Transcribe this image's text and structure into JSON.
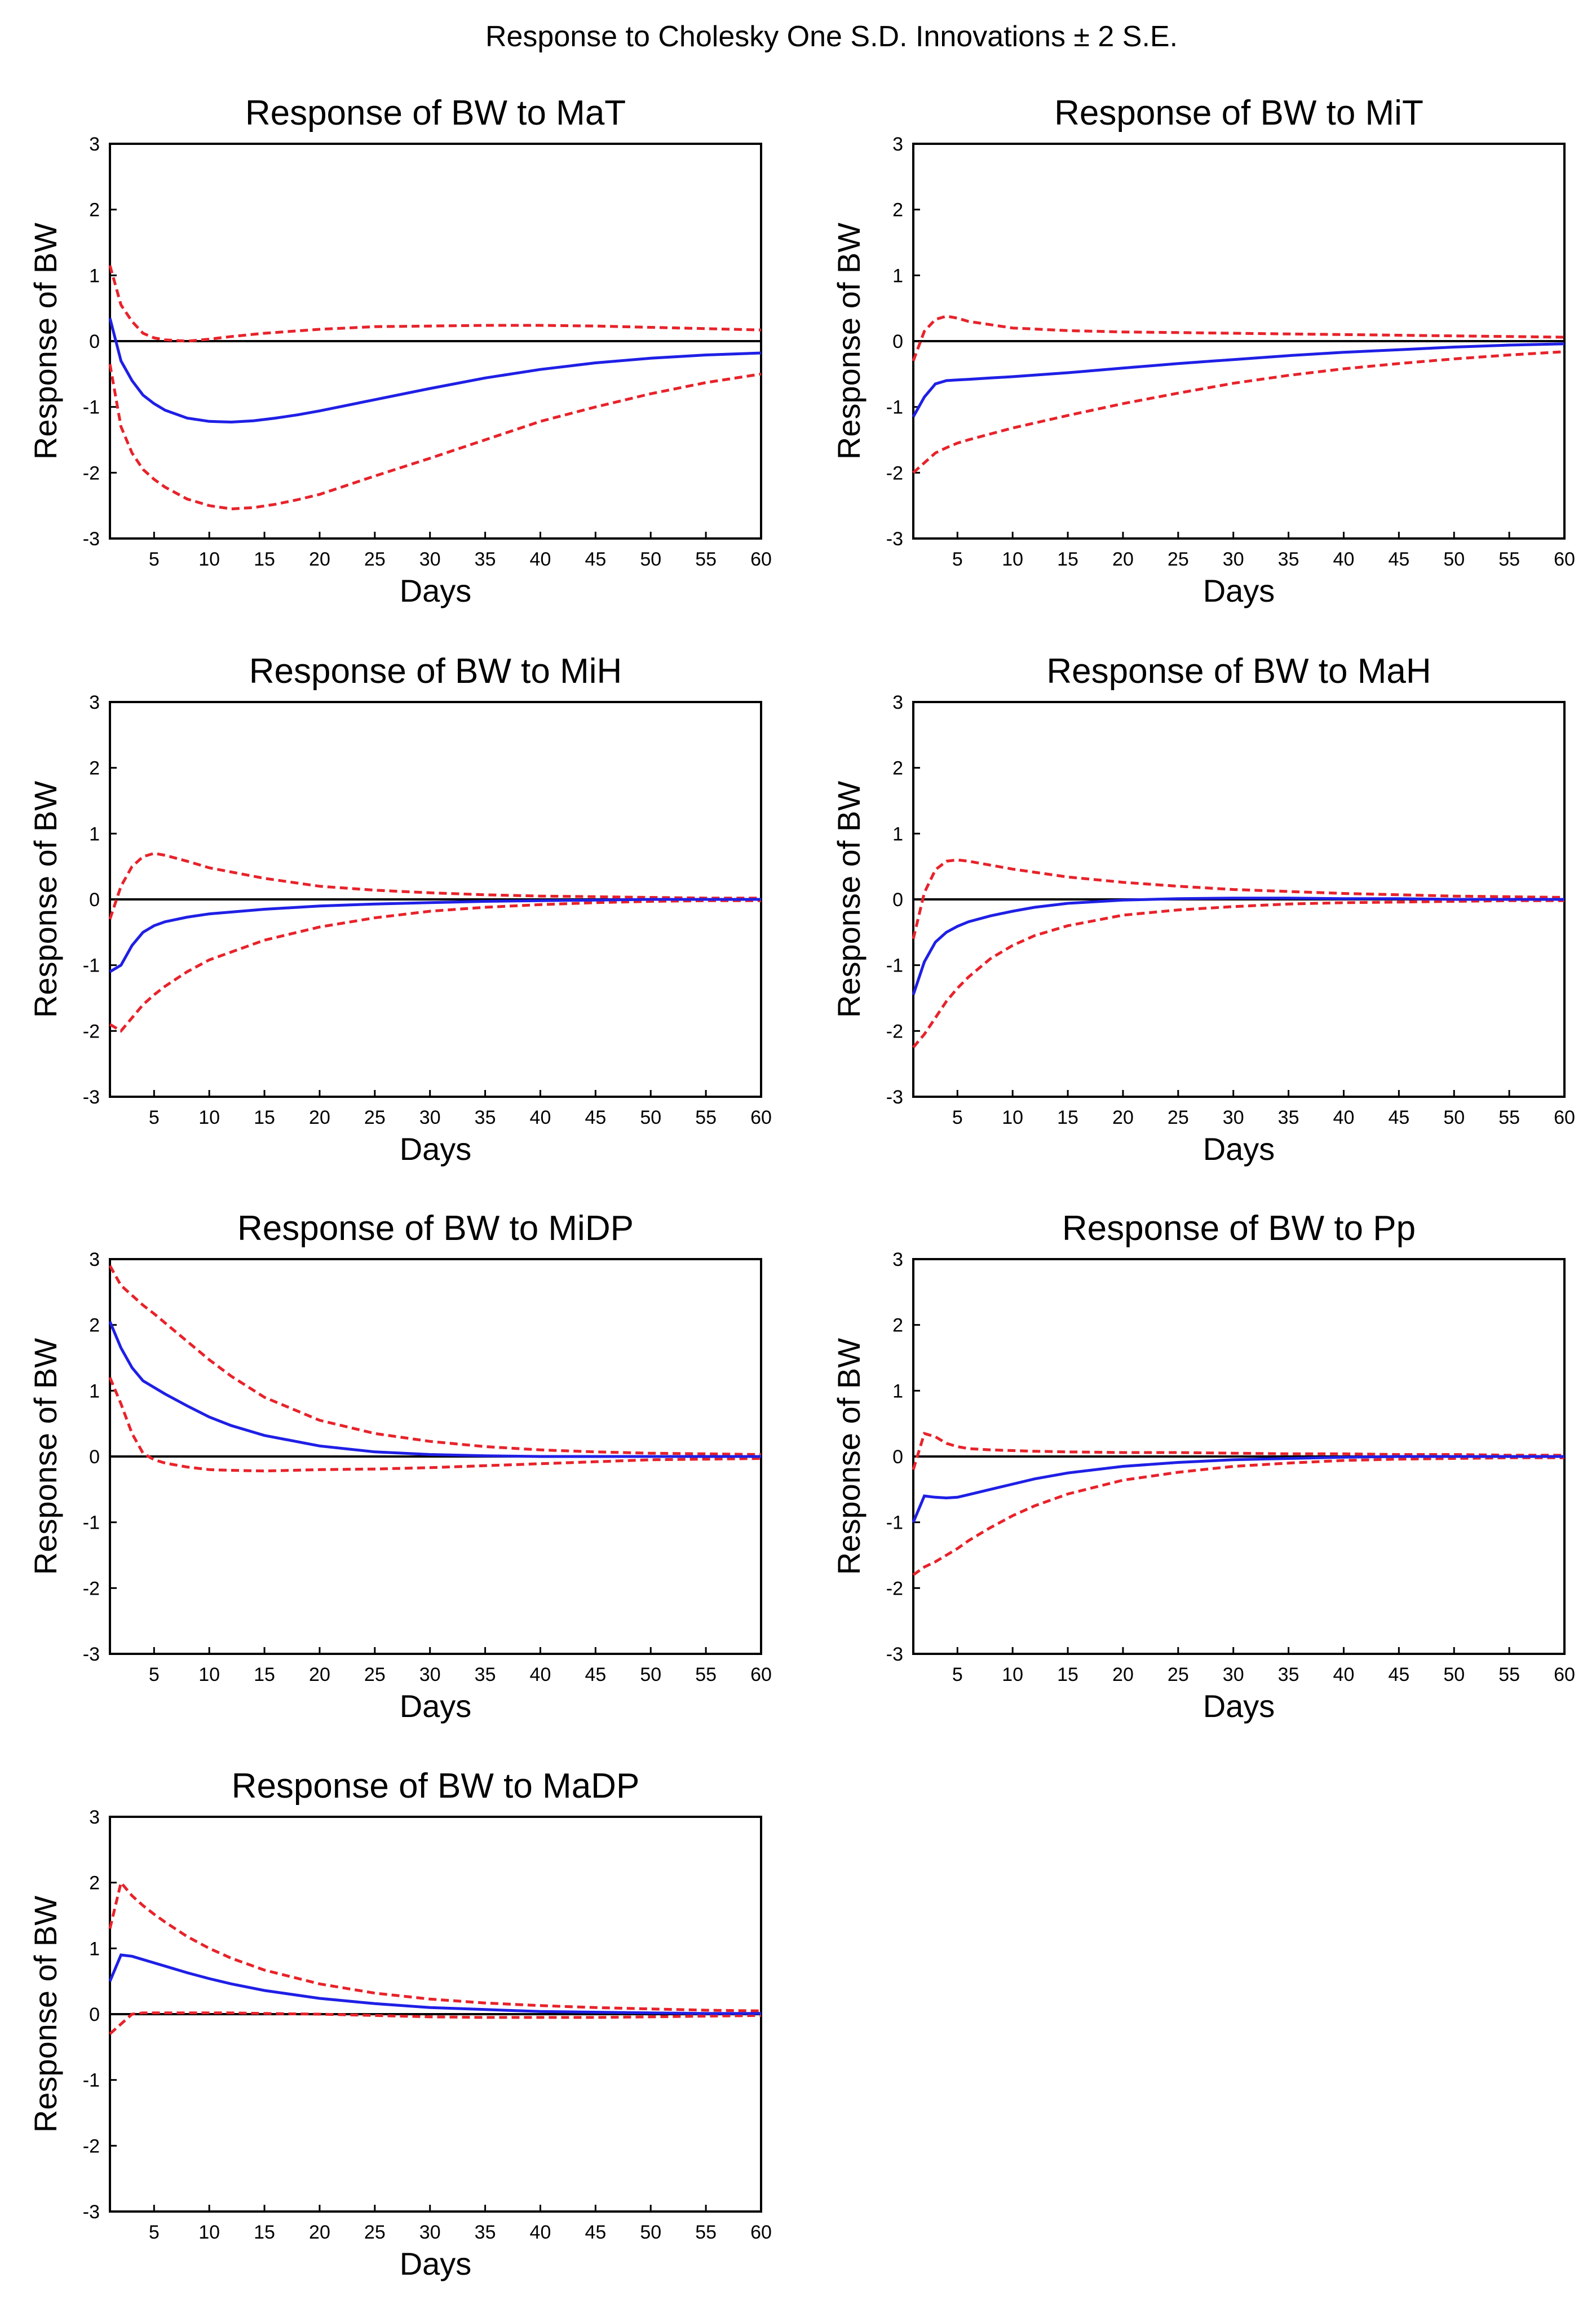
{
  "figure_title": "Response to Cholesky One S.D. Innovations ± 2 S.E.",
  "colors": {
    "response": "#1f1fe6",
    "bands": "#e8222a",
    "zero_line": "#000000"
  },
  "chart_data": [
    {
      "type": "line",
      "title": "Response of BW to MaT",
      "xlabel": "Days",
      "ylabel": "Response  of BW",
      "xlim": [
        1,
        60
      ],
      "ylim": [
        -3,
        3
      ],
      "xticks": [
        5,
        10,
        15,
        20,
        25,
        30,
        35,
        40,
        45,
        50,
        55,
        60
      ],
      "yticks": [
        -3,
        -2,
        -1,
        0,
        1,
        2,
        3
      ],
      "series": [
        {
          "role": "response",
          "x": [
            1,
            2,
            3,
            4,
            5,
            6,
            8,
            10,
            12,
            14,
            16,
            18,
            20,
            25,
            30,
            35,
            40,
            45,
            50,
            55,
            60
          ],
          "values": [
            0.35,
            -0.3,
            -0.6,
            -0.82,
            -0.95,
            -1.05,
            -1.17,
            -1.22,
            -1.23,
            -1.21,
            -1.17,
            -1.12,
            -1.06,
            -0.89,
            -0.72,
            -0.56,
            -0.43,
            -0.33,
            -0.26,
            -0.21,
            -0.18
          ]
        },
        {
          "role": "upper",
          "x": [
            1,
            2,
            3,
            4,
            5,
            6,
            8,
            10,
            12,
            15,
            20,
            25,
            30,
            35,
            40,
            45,
            50,
            55,
            60
          ],
          "values": [
            1.15,
            0.55,
            0.3,
            0.12,
            0.05,
            0.02,
            0.0,
            0.03,
            0.07,
            0.12,
            0.18,
            0.22,
            0.23,
            0.24,
            0.24,
            0.23,
            0.21,
            0.19,
            0.17
          ]
        },
        {
          "role": "lower",
          "x": [
            1,
            2,
            3,
            4,
            5,
            6,
            8,
            10,
            12,
            14,
            16,
            18,
            20,
            25,
            30,
            35,
            40,
            45,
            50,
            55,
            60
          ],
          "values": [
            -0.35,
            -1.3,
            -1.7,
            -1.95,
            -2.1,
            -2.22,
            -2.4,
            -2.5,
            -2.55,
            -2.53,
            -2.48,
            -2.41,
            -2.33,
            -2.05,
            -1.78,
            -1.5,
            -1.22,
            -1.0,
            -0.8,
            -0.63,
            -0.5
          ]
        }
      ]
    },
    {
      "type": "line",
      "title": "Response of BW to MiT",
      "xlabel": "Days",
      "ylabel": "Response  of BW",
      "xlim": [
        1,
        60
      ],
      "ylim": [
        -3,
        3
      ],
      "xticks": [
        5,
        10,
        15,
        20,
        25,
        30,
        35,
        40,
        45,
        50,
        55,
        60
      ],
      "yticks": [
        -3,
        -2,
        -1,
        0,
        1,
        2,
        3
      ],
      "series": [
        {
          "role": "response",
          "x": [
            1,
            2,
            3,
            4,
            5,
            6,
            8,
            10,
            15,
            20,
            25,
            30,
            35,
            40,
            45,
            50,
            55,
            60
          ],
          "values": [
            -1.15,
            -0.85,
            -0.65,
            -0.6,
            -0.59,
            -0.58,
            -0.56,
            -0.54,
            -0.48,
            -0.41,
            -0.34,
            -0.28,
            -0.22,
            -0.17,
            -0.13,
            -0.09,
            -0.06,
            -0.04
          ]
        },
        {
          "role": "upper",
          "x": [
            1,
            2,
            3,
            4,
            5,
            6,
            8,
            10,
            15,
            20,
            25,
            30,
            35,
            40,
            45,
            50,
            55,
            60
          ],
          "values": [
            -0.3,
            0.15,
            0.33,
            0.38,
            0.35,
            0.3,
            0.25,
            0.2,
            0.16,
            0.14,
            0.13,
            0.12,
            0.11,
            0.1,
            0.09,
            0.08,
            0.07,
            0.06
          ]
        },
        {
          "role": "lower",
          "x": [
            1,
            2,
            3,
            4,
            5,
            6,
            8,
            10,
            15,
            20,
            25,
            30,
            35,
            40,
            45,
            50,
            55,
            60
          ],
          "values": [
            -2.0,
            -1.85,
            -1.7,
            -1.62,
            -1.55,
            -1.5,
            -1.41,
            -1.32,
            -1.13,
            -0.95,
            -0.79,
            -0.64,
            -0.52,
            -0.42,
            -0.34,
            -0.27,
            -0.21,
            -0.16
          ]
        }
      ]
    },
    {
      "type": "line",
      "title": "Response of BW to MiH",
      "xlabel": "Days",
      "ylabel": "Response  of BW",
      "xlim": [
        1,
        60
      ],
      "ylim": [
        -3,
        3
      ],
      "xticks": [
        5,
        10,
        15,
        20,
        25,
        30,
        35,
        40,
        45,
        50,
        55,
        60
      ],
      "yticks": [
        -3,
        -2,
        -1,
        0,
        1,
        2,
        3
      ],
      "series": [
        {
          "role": "response",
          "x": [
            1,
            2,
            3,
            4,
            5,
            6,
            8,
            10,
            15,
            20,
            25,
            30,
            35,
            40,
            45,
            50,
            55,
            60
          ],
          "values": [
            -1.1,
            -1.0,
            -0.7,
            -0.5,
            -0.4,
            -0.34,
            -0.27,
            -0.22,
            -0.15,
            -0.1,
            -0.07,
            -0.05,
            -0.03,
            -0.02,
            -0.01,
            0.0,
            0.0,
            0.0
          ]
        },
        {
          "role": "upper",
          "x": [
            1,
            2,
            3,
            4,
            5,
            6,
            8,
            10,
            15,
            20,
            25,
            30,
            35,
            40,
            45,
            50,
            55,
            60
          ],
          "values": [
            -0.3,
            0.2,
            0.5,
            0.65,
            0.7,
            0.67,
            0.58,
            0.48,
            0.32,
            0.2,
            0.14,
            0.1,
            0.07,
            0.05,
            0.04,
            0.03,
            0.02,
            0.02
          ]
        },
        {
          "role": "lower",
          "x": [
            1,
            2,
            3,
            4,
            5,
            6,
            8,
            10,
            15,
            20,
            25,
            30,
            35,
            40,
            45,
            50,
            55,
            60
          ],
          "values": [
            -1.9,
            -2.0,
            -1.8,
            -1.6,
            -1.45,
            -1.32,
            -1.1,
            -0.92,
            -0.62,
            -0.42,
            -0.28,
            -0.18,
            -0.12,
            -0.08,
            -0.05,
            -0.03,
            -0.02,
            -0.02
          ]
        }
      ]
    },
    {
      "type": "line",
      "title": "Response of BW to MaH",
      "xlabel": "Days",
      "ylabel": "Response  of BW",
      "xlim": [
        1,
        60
      ],
      "ylim": [
        -3,
        3
      ],
      "xticks": [
        5,
        10,
        15,
        20,
        25,
        30,
        35,
        40,
        45,
        50,
        55,
        60
      ],
      "yticks": [
        -3,
        -2,
        -1,
        0,
        1,
        2,
        3
      ],
      "series": [
        {
          "role": "response",
          "x": [
            1,
            2,
            3,
            4,
            5,
            6,
            8,
            10,
            12,
            15,
            20,
            25,
            30,
            35,
            40,
            45,
            50,
            55,
            60
          ],
          "values": [
            -1.45,
            -0.95,
            -0.65,
            -0.5,
            -0.41,
            -0.34,
            -0.25,
            -0.18,
            -0.12,
            -0.06,
            -0.01,
            0.01,
            0.02,
            0.02,
            0.01,
            0.01,
            0.0,
            0.0,
            0.0
          ]
        },
        {
          "role": "upper",
          "x": [
            1,
            2,
            3,
            4,
            5,
            6,
            8,
            10,
            15,
            20,
            25,
            30,
            35,
            40,
            45,
            50,
            55,
            60
          ],
          "values": [
            -0.6,
            0.1,
            0.45,
            0.58,
            0.6,
            0.58,
            0.52,
            0.46,
            0.34,
            0.26,
            0.2,
            0.15,
            0.12,
            0.09,
            0.07,
            0.05,
            0.04,
            0.03
          ]
        },
        {
          "role": "lower",
          "x": [
            1,
            2,
            3,
            4,
            5,
            6,
            8,
            10,
            12,
            15,
            20,
            25,
            30,
            35,
            40,
            45,
            50,
            55,
            60
          ],
          "values": [
            -2.25,
            -2.05,
            -1.8,
            -1.55,
            -1.35,
            -1.18,
            -0.9,
            -0.7,
            -0.55,
            -0.4,
            -0.24,
            -0.16,
            -0.11,
            -0.07,
            -0.05,
            -0.04,
            -0.03,
            -0.02,
            -0.02
          ]
        }
      ]
    },
    {
      "type": "line",
      "title": "Response of BW to MiDP",
      "xlabel": "Days",
      "ylabel": "Response  of BW",
      "xlim": [
        1,
        60
      ],
      "ylim": [
        -3,
        3
      ],
      "xticks": [
        5,
        10,
        15,
        20,
        25,
        30,
        35,
        40,
        45,
        50,
        55,
        60
      ],
      "yticks": [
        -3,
        -2,
        -1,
        0,
        1,
        2,
        3
      ],
      "series": [
        {
          "role": "response",
          "x": [
            1,
            2,
            3,
            4,
            5,
            6,
            8,
            10,
            12,
            15,
            20,
            25,
            30,
            35,
            40,
            45,
            50,
            55,
            60
          ],
          "values": [
            2.05,
            1.65,
            1.35,
            1.15,
            1.05,
            0.95,
            0.77,
            0.6,
            0.47,
            0.32,
            0.16,
            0.07,
            0.03,
            0.01,
            0.0,
            0.0,
            0.0,
            0.0,
            0.0
          ]
        },
        {
          "role": "upper",
          "x": [
            1,
            2,
            3,
            4,
            5,
            6,
            8,
            10,
            12,
            15,
            20,
            25,
            30,
            35,
            40,
            45,
            50,
            55,
            60
          ],
          "values": [
            2.9,
            2.6,
            2.45,
            2.3,
            2.17,
            2.03,
            1.75,
            1.47,
            1.22,
            0.9,
            0.55,
            0.35,
            0.23,
            0.15,
            0.1,
            0.07,
            0.05,
            0.04,
            0.03
          ]
        },
        {
          "role": "lower",
          "x": [
            1,
            2,
            3,
            4,
            5,
            6,
            8,
            10,
            12,
            15,
            20,
            25,
            30,
            35,
            40,
            45,
            50,
            55,
            60
          ],
          "values": [
            1.2,
            0.8,
            0.35,
            0.05,
            -0.05,
            -0.1,
            -0.16,
            -0.2,
            -0.21,
            -0.22,
            -0.2,
            -0.19,
            -0.17,
            -0.14,
            -0.11,
            -0.08,
            -0.05,
            -0.04,
            -0.03
          ]
        }
      ]
    },
    {
      "type": "line",
      "title": "Response of BW to Pp",
      "xlabel": "Days",
      "ylabel": "Response  of BW",
      "xlim": [
        1,
        60
      ],
      "ylim": [
        -3,
        3
      ],
      "xticks": [
        5,
        10,
        15,
        20,
        25,
        30,
        35,
        40,
        45,
        50,
        55,
        60
      ],
      "yticks": [
        -3,
        -2,
        -1,
        0,
        1,
        2,
        3
      ],
      "series": [
        {
          "role": "response",
          "x": [
            1,
            2,
            3,
            4,
            5,
            6,
            8,
            10,
            12,
            15,
            20,
            25,
            30,
            35,
            40,
            45,
            50,
            55,
            60
          ],
          "values": [
            -1.0,
            -0.6,
            -0.62,
            -0.63,
            -0.62,
            -0.58,
            -0.5,
            -0.42,
            -0.34,
            -0.25,
            -0.15,
            -0.09,
            -0.05,
            -0.03,
            -0.01,
            0.0,
            0.0,
            0.0,
            0.0
          ]
        },
        {
          "role": "upper",
          "x": [
            1,
            2,
            3,
            4,
            5,
            6,
            8,
            10,
            12,
            15,
            20,
            25,
            30,
            35,
            40,
            45,
            50,
            55,
            60
          ],
          "values": [
            -0.2,
            0.35,
            0.3,
            0.2,
            0.15,
            0.12,
            0.1,
            0.09,
            0.08,
            0.07,
            0.06,
            0.06,
            0.05,
            0.04,
            0.04,
            0.03,
            0.03,
            0.02,
            0.02
          ]
        },
        {
          "role": "lower",
          "x": [
            1,
            2,
            3,
            4,
            5,
            6,
            8,
            10,
            12,
            15,
            20,
            25,
            30,
            35,
            40,
            45,
            50,
            55,
            60
          ],
          "values": [
            -1.8,
            -1.68,
            -1.6,
            -1.5,
            -1.4,
            -1.28,
            -1.08,
            -0.9,
            -0.75,
            -0.57,
            -0.36,
            -0.24,
            -0.15,
            -0.1,
            -0.06,
            -0.04,
            -0.03,
            -0.02,
            -0.02
          ]
        }
      ]
    },
    {
      "type": "line",
      "title": "Response of BW to MaDP",
      "xlabel": "Days",
      "ylabel": "Response  of BW",
      "xlim": [
        1,
        60
      ],
      "ylim": [
        -3,
        3
      ],
      "xticks": [
        5,
        10,
        15,
        20,
        25,
        30,
        35,
        40,
        45,
        50,
        55,
        60
      ],
      "yticks": [
        -3,
        -2,
        -1,
        0,
        1,
        2,
        3
      ],
      "series": [
        {
          "role": "response",
          "x": [
            1,
            2,
            3,
            4,
            5,
            6,
            8,
            10,
            12,
            15,
            20,
            25,
            30,
            35,
            40,
            45,
            50,
            55,
            60
          ],
          "values": [
            0.5,
            0.9,
            0.88,
            0.83,
            0.78,
            0.73,
            0.63,
            0.54,
            0.46,
            0.36,
            0.24,
            0.16,
            0.1,
            0.07,
            0.04,
            0.03,
            0.02,
            0.01,
            0.01
          ]
        },
        {
          "role": "upper",
          "x": [
            1,
            2,
            3,
            4,
            5,
            6,
            8,
            10,
            12,
            15,
            20,
            25,
            30,
            35,
            40,
            45,
            50,
            55,
            60
          ],
          "values": [
            1.3,
            2.0,
            1.8,
            1.65,
            1.52,
            1.4,
            1.18,
            1.0,
            0.85,
            0.67,
            0.46,
            0.32,
            0.23,
            0.17,
            0.13,
            0.1,
            0.08,
            0.06,
            0.05
          ]
        },
        {
          "role": "lower",
          "x": [
            1,
            2,
            3,
            4,
            5,
            6,
            8,
            10,
            12,
            15,
            20,
            25,
            30,
            35,
            40,
            45,
            50,
            55,
            60
          ],
          "values": [
            -0.3,
            -0.15,
            0.0,
            0.02,
            0.02,
            0.02,
            0.02,
            0.02,
            0.02,
            0.01,
            0.0,
            -0.02,
            -0.04,
            -0.05,
            -0.05,
            -0.05,
            -0.04,
            -0.03,
            -0.02
          ]
        }
      ]
    }
  ]
}
